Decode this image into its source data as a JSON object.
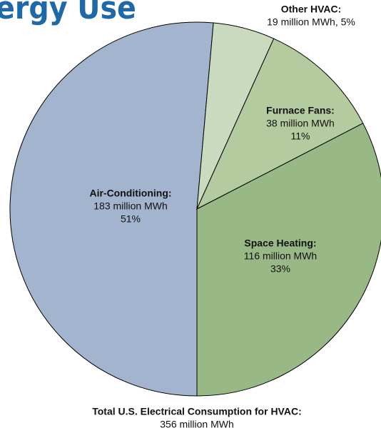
{
  "chart_data": {
    "type": "pie",
    "title": "ergy Use",
    "categories": [
      "Air-Conditioning:",
      "Other HVAC:",
      "Furnace Fans:",
      "Space Heating:"
    ],
    "values": [
      183,
      19,
      38,
      116
    ],
    "value_labels": [
      "183 million MWh",
      "19 million MWh, 5%",
      "38 million MWh",
      "116 million MWh"
    ],
    "share_labels": [
      "51%",
      null,
      "11%",
      "33%"
    ],
    "colors": [
      "#a3b4cf",
      "#cadabf",
      "#b4cba0",
      "#98b985"
    ],
    "total_label": "Total U.S. Electrical Consumption for HVAC:",
    "total_value_label": "356 million MWh"
  }
}
